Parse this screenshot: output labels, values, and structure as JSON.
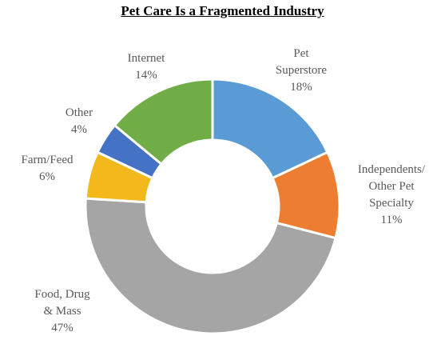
{
  "chart_data": {
    "type": "pie",
    "title": "Pet Care Is a Fragmented Industry",
    "donut": true,
    "slices": [
      {
        "label": [
          "Pet",
          "Superstore"
        ],
        "value": 18,
        "display": "18%",
        "color": "#5b9bd5"
      },
      {
        "label": [
          "Independents/",
          "Other Pet",
          "Specialty"
        ],
        "value": 11,
        "display": "11%",
        "color": "#ed7d31"
      },
      {
        "label": [
          "Food, Drug",
          "& Mass"
        ],
        "value": 47,
        "display": "47%",
        "color": "#a5a5a5"
      },
      {
        "label": [
          "Farm/Feed"
        ],
        "value": 6,
        "display": "6%",
        "color": "#f2b81c"
      },
      {
        "label": [
          "Other"
        ],
        "value": 4,
        "display": "4%",
        "color": "#4472c4"
      },
      {
        "label": [
          "Internet"
        ],
        "value": 14,
        "display": "14%",
        "color": "#70ad47"
      }
    ]
  }
}
